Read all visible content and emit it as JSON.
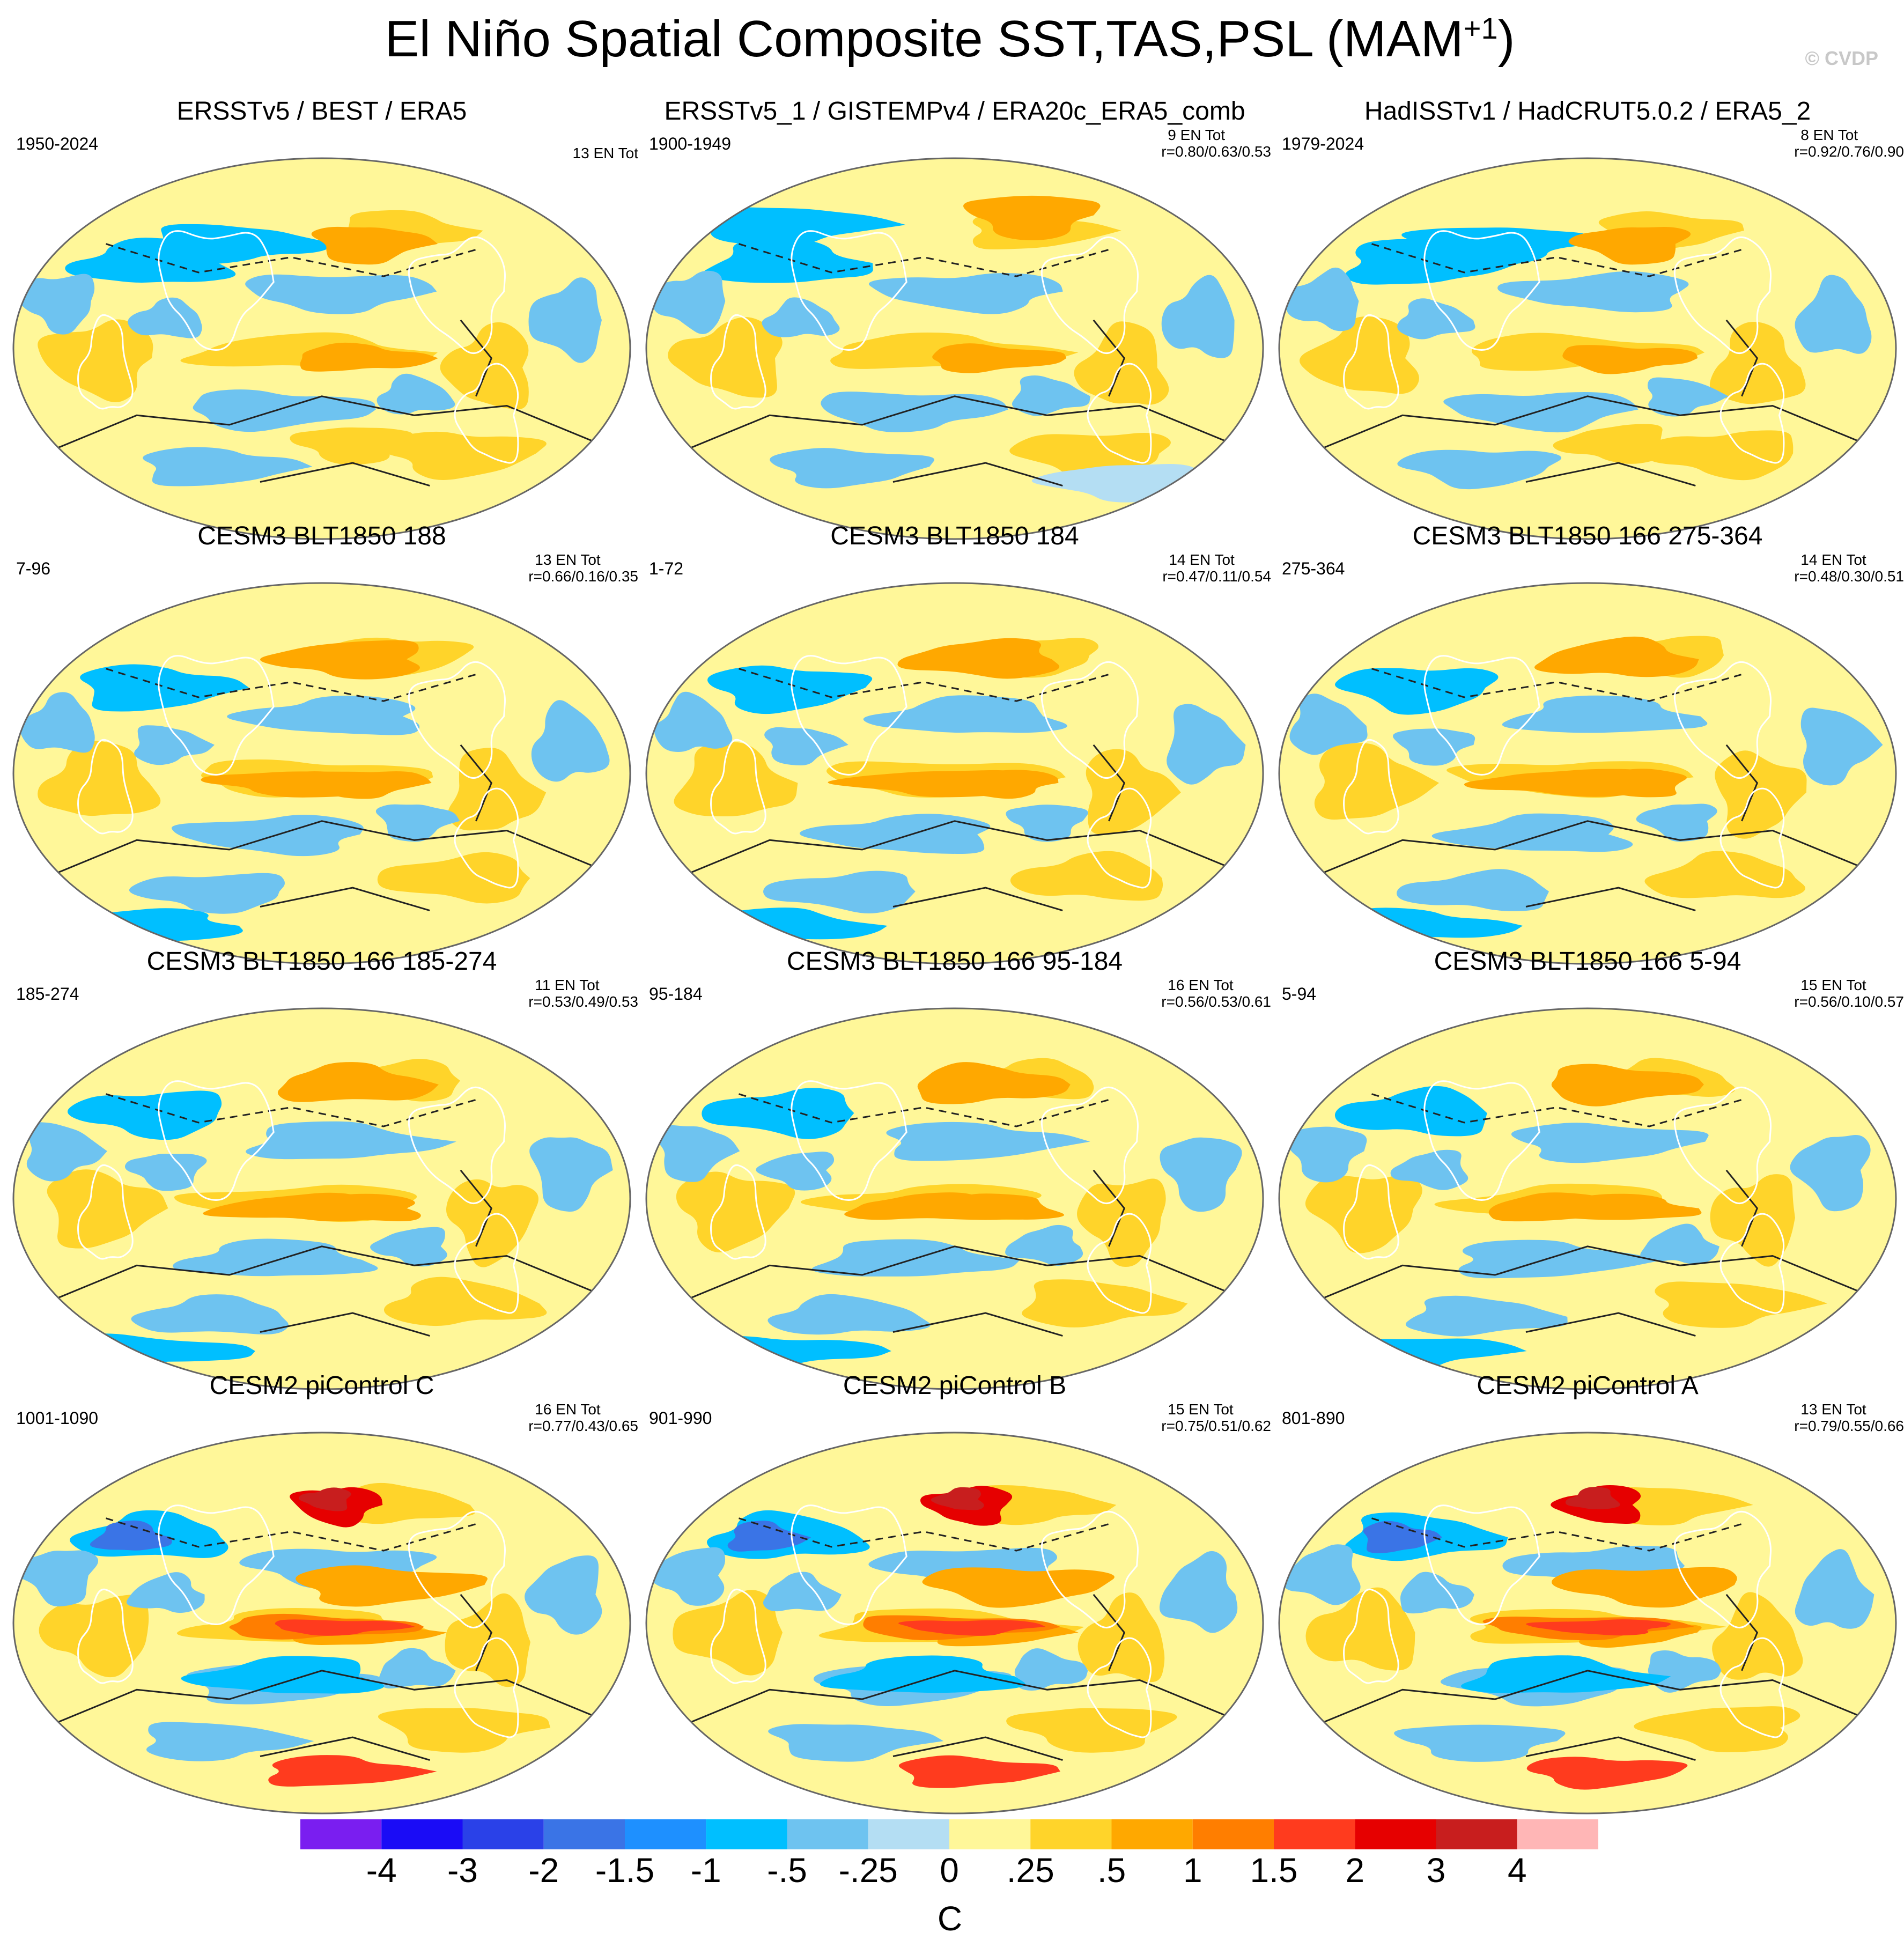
{
  "title": "El Niño Spatial Composite SST,TAS,PSL (MAM",
  "title_superscript": "+1",
  "title_close": ")",
  "watermark": "© CVDP",
  "chart_data": {
    "type": "heatmap",
    "projection": "Robinson world maps (Pacific-centered), 4 rows x 3 columns",
    "field": "SST/TAS composite anomaly (shading) with PSL contours",
    "colorbar": {
      "unit": "C",
      "tick_labels": [
        "-4",
        "-3",
        "-2",
        "-1.5",
        "-1",
        "-.5",
        "-.25",
        "0",
        ".25",
        ".5",
        "1",
        "1.5",
        "2",
        "3",
        "4"
      ],
      "colors": [
        "#7a1ef0",
        "#1a0cf6",
        "#2a41e8",
        "#3a74e6",
        "#1e90ff",
        "#00bfff",
        "#6ec3f0",
        "#b4def3",
        "#fff799",
        "#ffd42a",
        "#ffa800",
        "#ff7e00",
        "#ff3b1e",
        "#e60000",
        "#c81e1e",
        "#ffb6b6"
      ]
    },
    "panels": [
      {
        "title": "ERSSTv5 / BEST / ERA5",
        "period": "1950-2024",
        "events": "13 EN Tot",
        "r": "",
        "pattern": "obs"
      },
      {
        "title": "ERSSTv5_1 / GISTEMPv4 / ERA20c_ERA5_comb",
        "period": "1900-1949",
        "events": "9 EN Tot",
        "r": "r=0.80/0.63/0.53",
        "pattern": "obs-early"
      },
      {
        "title": "HadISSTv1 / HadCRUT5.0.2 / ERA5_2",
        "period": "1979-2024",
        "events": "8 EN Tot",
        "r": "r=0.92/0.76/0.90",
        "pattern": "obs"
      },
      {
        "title": "CESM3 BLT1850 188",
        "period": "7-96",
        "events": "13 EN Tot",
        "r": "r=0.66/0.16/0.35",
        "pattern": "model"
      },
      {
        "title": "CESM3 BLT1850 184",
        "period": "1-72",
        "events": "14 EN Tot",
        "r": "r=0.47/0.11/0.54",
        "pattern": "model"
      },
      {
        "title": "CESM3 BLT1850 166 275-364",
        "period": "275-364",
        "events": "14 EN Tot",
        "r": "r=0.48/0.30/0.51",
        "pattern": "model"
      },
      {
        "title": "CESM3 BLT1850 166 185-274",
        "period": "185-274",
        "events": "11 EN Tot",
        "r": "r=0.53/0.49/0.53",
        "pattern": "model"
      },
      {
        "title": "CESM3 BLT1850 166 95-184",
        "period": "95-184",
        "events": "16 EN Tot",
        "r": "r=0.56/0.53/0.61",
        "pattern": "model"
      },
      {
        "title": "CESM3 BLT1850 166 5-94",
        "period": "5-94",
        "events": "15 EN Tot",
        "r": "r=0.56/0.10/0.57",
        "pattern": "model"
      },
      {
        "title": "CESM2 piControl C",
        "period": "1001-1090",
        "events": "16 EN Tot",
        "r": "r=0.77/0.43/0.65",
        "pattern": "strong"
      },
      {
        "title": "CESM2 piControl B",
        "period": "901-990",
        "events": "15 EN Tot",
        "r": "r=0.75/0.51/0.62",
        "pattern": "strong"
      },
      {
        "title": "CESM2 piControl A",
        "period": "801-890",
        "events": "13 EN Tot",
        "r": "r=0.79/0.55/0.66",
        "pattern": "strong"
      }
    ]
  }
}
